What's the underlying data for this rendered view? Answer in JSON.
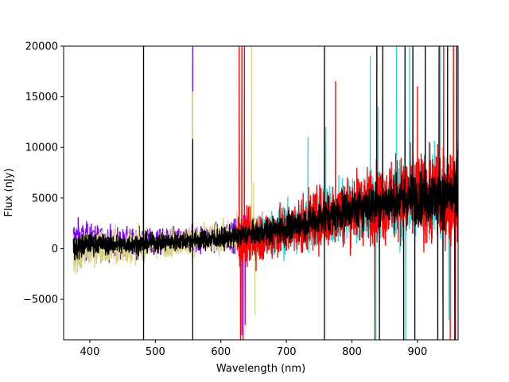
{
  "chart_data": {
    "type": "line",
    "title": "",
    "xlabel": "Wavelength (nm)",
    "ylabel": "Flux (nJy)",
    "xlim": [
      360,
      962
    ],
    "ylim": [
      -9000,
      20000
    ],
    "x_ticks": [
      400,
      500,
      600,
      700,
      800,
      900
    ],
    "y_ticks": [
      -5000,
      0,
      5000,
      10000,
      15000,
      20000
    ],
    "x_tick_labels": [
      "400",
      "500",
      "600",
      "700",
      "800",
      "900"
    ],
    "y_tick_labels": [
      "−5000",
      "0",
      "5000",
      "10000",
      "15000",
      "20000"
    ],
    "grid": false,
    "legend": "none",
    "series": [
      {
        "color": "#7f00ff",
        "x_range": [
          375,
          640
        ],
        "trend": [
          [
            375,
            800
          ],
          [
            400,
            700
          ],
          [
            450,
            500
          ],
          [
            500,
            600
          ],
          [
            550,
            800
          ],
          [
            600,
            1200
          ],
          [
            640,
            1500
          ]
        ],
        "noise": [
          [
            375,
            2000
          ],
          [
            400,
            1500
          ],
          [
            500,
            1100
          ],
          [
            600,
            1200
          ],
          [
            640,
            1500
          ]
        ],
        "spikes": [
          [
            557,
            20000
          ],
          [
            632,
            -8500
          ],
          [
            637,
            -7500
          ]
        ]
      },
      {
        "color": "#d4d482",
        "x_range": [
          375,
          652
        ],
        "trend": [
          [
            375,
            0
          ],
          [
            400,
            0
          ],
          [
            450,
            200
          ],
          [
            500,
            500
          ],
          [
            550,
            800
          ],
          [
            600,
            1000
          ],
          [
            652,
            1500
          ]
        ],
        "noise": [
          [
            375,
            2400
          ],
          [
            400,
            1800
          ],
          [
            500,
            1200
          ],
          [
            600,
            1300
          ],
          [
            652,
            1800
          ]
        ],
        "spikes": [
          [
            557,
            15500
          ],
          [
            647,
            20000
          ],
          [
            650,
            6500
          ],
          [
            652,
            -6500
          ]
        ]
      },
      {
        "color": "#2ad9d9",
        "x_range": [
          650,
          962
        ],
        "trend": [
          [
            650,
            1200
          ],
          [
            700,
            1800
          ],
          [
            750,
            2800
          ],
          [
            800,
            3800
          ],
          [
            850,
            4600
          ],
          [
            900,
            5000
          ],
          [
            962,
            5200
          ]
        ],
        "noise": [
          [
            650,
            1800
          ],
          [
            700,
            2200
          ],
          [
            750,
            2500
          ],
          [
            800,
            2800
          ],
          [
            850,
            3000
          ],
          [
            900,
            3300
          ],
          [
            962,
            3600
          ]
        ],
        "spikes": [
          [
            733,
            11000
          ],
          [
            760,
            12000
          ],
          [
            828,
            19000
          ],
          [
            836,
            -9000
          ],
          [
            840,
            14000
          ],
          [
            868,
            20000
          ],
          [
            882,
            -9000
          ],
          [
            888,
            20000
          ],
          [
            935,
            20000
          ],
          [
            948,
            -7000
          ]
        ]
      },
      {
        "color": "#ff0000",
        "x_range": [
          625,
          962
        ],
        "trend": [
          [
            625,
            1000
          ],
          [
            650,
            1000
          ],
          [
            700,
            1800
          ],
          [
            750,
            3000
          ],
          [
            800,
            4000
          ],
          [
            850,
            4700
          ],
          [
            900,
            5100
          ],
          [
            962,
            5300
          ]
        ],
        "noise": [
          [
            625,
            2200
          ],
          [
            700,
            2300
          ],
          [
            750,
            2700
          ],
          [
            800,
            3100
          ],
          [
            850,
            3400
          ],
          [
            900,
            3800
          ],
          [
            962,
            4200
          ]
        ],
        "spikes": [
          [
            628,
            20000
          ],
          [
            630,
            -9000
          ],
          [
            632,
            20000
          ],
          [
            634,
            -9000
          ],
          [
            636,
            20000
          ],
          [
            775,
            16500
          ],
          [
            835,
            -9000
          ],
          [
            900,
            16000
          ],
          [
            940,
            20000
          ],
          [
            950,
            -9000
          ],
          [
            955,
            20000
          ],
          [
            958,
            -9000
          ]
        ]
      },
      {
        "color": "#000000",
        "x_range": [
          375,
          962
        ],
        "trend": [
          [
            375,
            0
          ],
          [
            400,
            500
          ],
          [
            450,
            400
          ],
          [
            500,
            600
          ],
          [
            550,
            800
          ],
          [
            600,
            1000
          ],
          [
            650,
            1500
          ],
          [
            700,
            2000
          ],
          [
            750,
            3000
          ],
          [
            800,
            3900
          ],
          [
            850,
            4600
          ],
          [
            900,
            5000
          ],
          [
            962,
            5200
          ]
        ],
        "noise": [
          [
            375,
            1200
          ],
          [
            400,
            900
          ],
          [
            500,
            800
          ],
          [
            600,
            900
          ],
          [
            650,
            1000
          ],
          [
            700,
            1300
          ],
          [
            750,
            1500
          ],
          [
            800,
            1700
          ],
          [
            850,
            2000
          ],
          [
            900,
            2300
          ],
          [
            962,
            2600
          ]
        ],
        "spikes": [
          [
            482,
            20000
          ],
          [
            482,
            -9000
          ],
          [
            557,
            10800
          ],
          [
            557,
            -9000
          ],
          [
            758,
            20000
          ],
          [
            758,
            -9000
          ],
          [
            838,
            20000
          ],
          [
            842,
            -9000
          ],
          [
            847,
            20000
          ],
          [
            879,
            -9000
          ],
          [
            881,
            20000
          ],
          [
            893,
            20000
          ],
          [
            896,
            -9000
          ],
          [
            912,
            20000
          ],
          [
            931,
            -9000
          ],
          [
            933,
            20000
          ],
          [
            939,
            -9000
          ],
          [
            946,
            20000
          ],
          [
            957,
            -9000
          ],
          [
            960,
            20000
          ]
        ]
      }
    ]
  }
}
